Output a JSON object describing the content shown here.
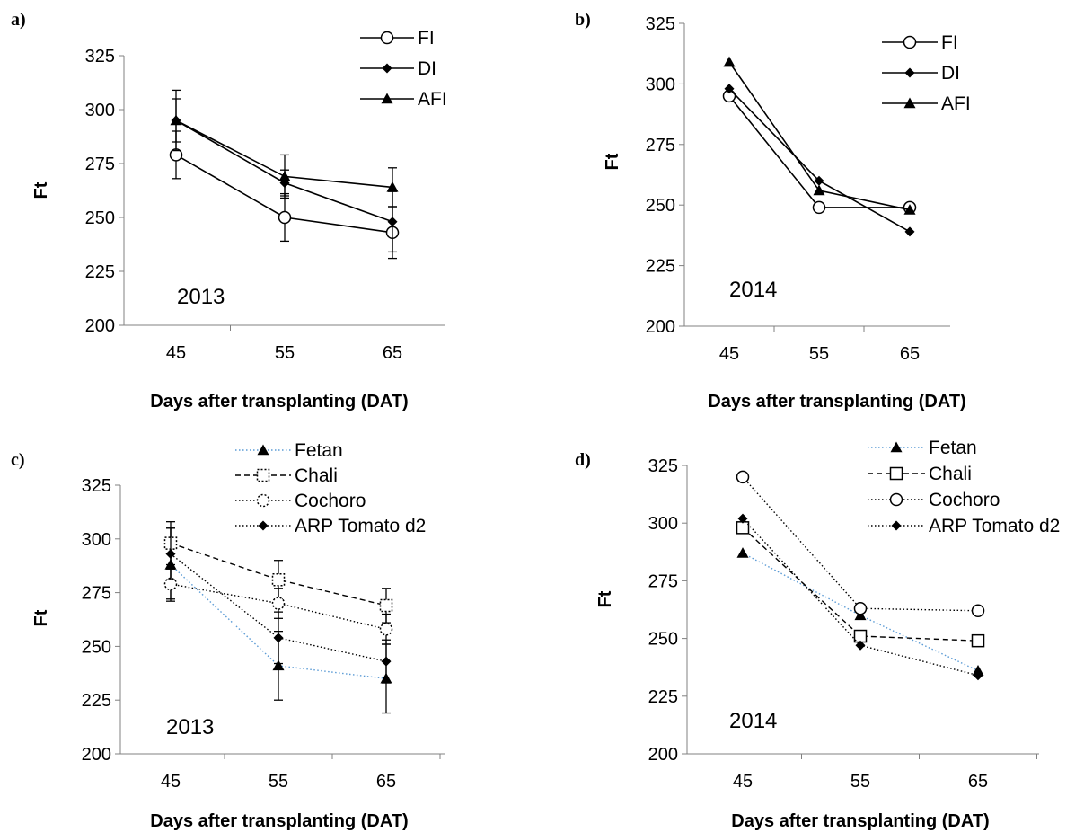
{
  "chart_data": [
    {
      "id": "a",
      "type": "line",
      "panel_label": "a)",
      "ylabel": "Ft",
      "xlabel": "Days after transplanting (DAT)",
      "annotation": "2013",
      "x": [
        45,
        55,
        65
      ],
      "ylim": [
        200,
        325
      ],
      "yticks": [
        200,
        225,
        250,
        275,
        300,
        325
      ],
      "xlim": [
        40,
        70
      ],
      "legend_position": "top-right",
      "series": [
        {
          "name": "FI",
          "marker": "circle-open",
          "line": "solid",
          "color": "#000000",
          "values": [
            279,
            250,
            243
          ],
          "error": [
            11,
            11,
            12
          ]
        },
        {
          "name": "DI",
          "marker": "diamond",
          "line": "solid",
          "color": "#000000",
          "values": [
            295,
            266,
            248
          ],
          "error": [
            10,
            6,
            14
          ]
        },
        {
          "name": "AFI",
          "marker": "triangle",
          "line": "solid",
          "color": "#000000",
          "values": [
            295,
            269,
            264
          ],
          "error": [
            14,
            10,
            9
          ]
        }
      ]
    },
    {
      "id": "b",
      "type": "line",
      "panel_label": "b)",
      "ylabel": "Ft",
      "xlabel": "Days after transplanting (DAT)",
      "annotation": "2014",
      "x": [
        45,
        55,
        65
      ],
      "ylim": [
        200,
        325
      ],
      "yticks": [
        200,
        225,
        250,
        275,
        300,
        325
      ],
      "xlim": [
        40,
        70
      ],
      "legend_position": "top-right",
      "series": [
        {
          "name": "FI",
          "marker": "circle-open",
          "line": "solid",
          "color": "#000000",
          "values": [
            295,
            249,
            249
          ]
        },
        {
          "name": "DI",
          "marker": "diamond",
          "line": "solid",
          "color": "#000000",
          "values": [
            298,
            260,
            239
          ]
        },
        {
          "name": "AFI",
          "marker": "triangle",
          "line": "solid",
          "color": "#000000",
          "values": [
            309,
            256,
            248
          ]
        }
      ]
    },
    {
      "id": "c",
      "type": "line",
      "panel_label": "c)",
      "ylabel": "Ft",
      "xlabel": "Days after transplanting (DAT)",
      "annotation": "2013",
      "x": [
        45,
        55,
        65
      ],
      "ylim": [
        200,
        325
      ],
      "yticks": [
        200,
        225,
        250,
        275,
        300,
        325
      ],
      "xlim": [
        40,
        70
      ],
      "legend_position": "top-right",
      "series": [
        {
          "name": "Fetan",
          "marker": "triangle",
          "line": "dotted",
          "color": "#5b9bd5",
          "values": [
            288,
            241,
            235
          ],
          "error": [
            17,
            16,
            16
          ]
        },
        {
          "name": "Chali",
          "marker": "square-open-dashed",
          "line": "dashed",
          "color": "#000000",
          "values": [
            298,
            281,
            269
          ],
          "error": [
            10,
            9,
            8
          ]
        },
        {
          "name": "Cochoro",
          "marker": "circle-open-dotted",
          "line": "dotted",
          "color": "#000000",
          "values": [
            279,
            270,
            258
          ],
          "error": [
            7,
            7,
            7
          ]
        },
        {
          "name": "ARP Tomato d2",
          "marker": "diamond",
          "line": "dotted",
          "color": "#000000",
          "values": [
            293,
            254,
            243
          ],
          "error": [
            12,
            12,
            10
          ]
        }
      ]
    },
    {
      "id": "d",
      "type": "line",
      "panel_label": "d)",
      "ylabel": "Ft",
      "xlabel": "Days after transplanting (DAT)",
      "annotation": "2014",
      "x": [
        45,
        55,
        65
      ],
      "ylim": [
        200,
        325
      ],
      "yticks": [
        200,
        225,
        250,
        275,
        300,
        325
      ],
      "xlim": [
        40,
        70
      ],
      "legend_position": "top-right",
      "series": [
        {
          "name": "Fetan",
          "marker": "triangle",
          "line": "dotted",
          "color": "#5b9bd5",
          "values": [
            287,
            260,
            236
          ]
        },
        {
          "name": "Chali",
          "marker": "square-open",
          "line": "dashed",
          "color": "#000000",
          "values": [
            298,
            251,
            249
          ]
        },
        {
          "name": "Cochoro",
          "marker": "circle-open",
          "line": "dotted",
          "color": "#000000",
          "values": [
            320,
            263,
            262
          ]
        },
        {
          "name": "ARP Tomato d2",
          "marker": "diamond",
          "line": "dotted",
          "color": "#000000",
          "values": [
            302,
            247,
            234
          ]
        }
      ]
    }
  ]
}
